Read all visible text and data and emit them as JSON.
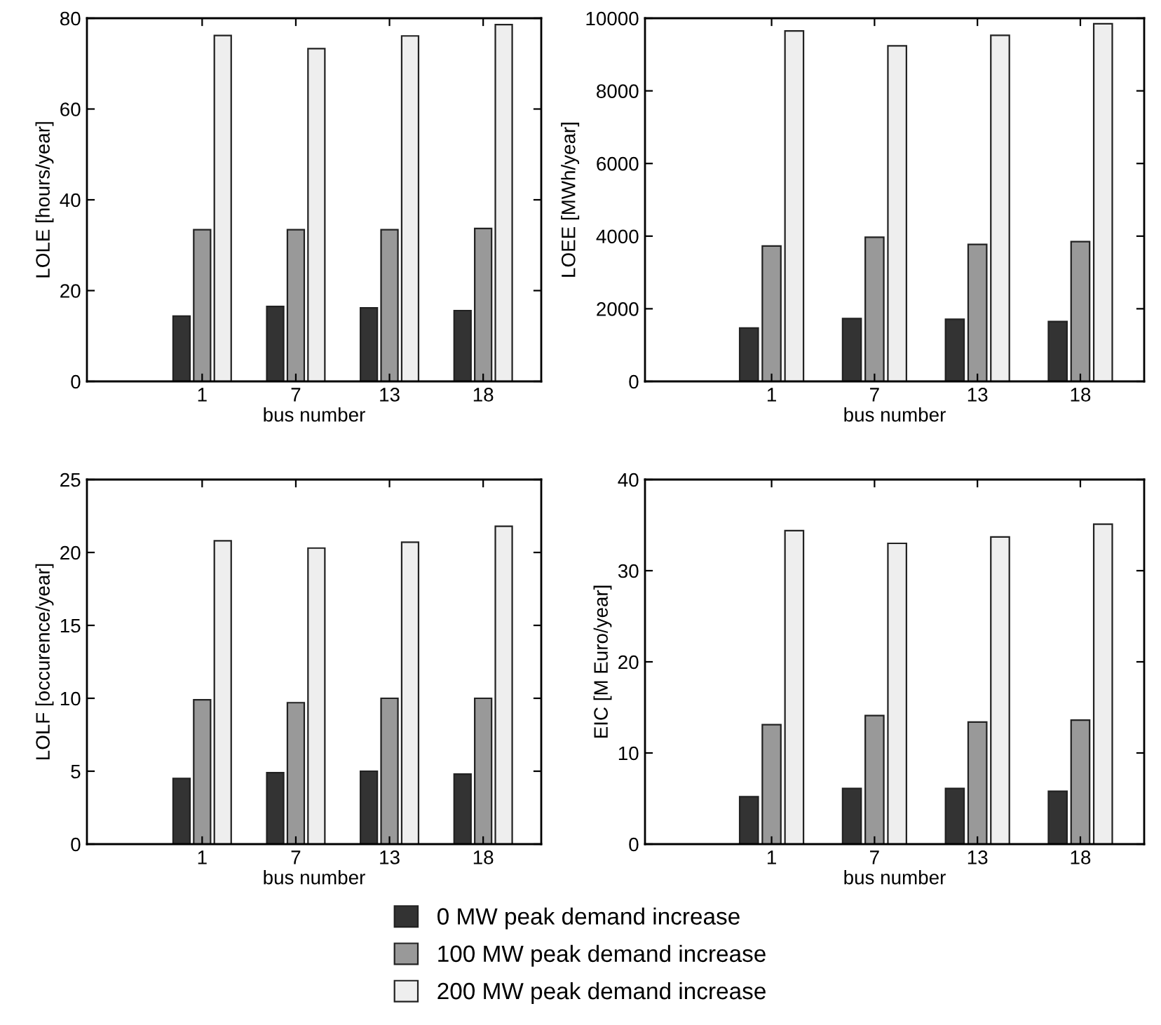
{
  "chart_data": [
    {
      "type": "bar",
      "xlabel": "bus number",
      "ylabel": "LOLE [hours/year]",
      "categories": [
        "1",
        "7",
        "13",
        "18"
      ],
      "ylim": [
        0,
        80
      ],
      "yticks": [
        0,
        20,
        40,
        60,
        80
      ],
      "grid": false,
      "legend": "bottom",
      "series": [
        {
          "name": "0 MW peak demand increase",
          "color": "#333333",
          "values": [
            14.4,
            16.5,
            16.2,
            15.6
          ]
        },
        {
          "name": "100 MW peak demand increase",
          "color": "#999999",
          "values": [
            33.4,
            33.4,
            33.4,
            33.7
          ]
        },
        {
          "name": "200 MW peak demand increase",
          "color": "#eeeeee",
          "values": [
            76.2,
            73.3,
            76.1,
            78.6
          ]
        }
      ]
    },
    {
      "type": "bar",
      "xlabel": "bus number",
      "ylabel": "LOEE [MWh/year]",
      "categories": [
        "1",
        "7",
        "13",
        "18"
      ],
      "ylim": [
        0,
        10000
      ],
      "yticks": [
        0,
        2000,
        4000,
        6000,
        8000,
        10000
      ],
      "grid": false,
      "series": [
        {
          "color": "#333333",
          "values": [
            1470,
            1730,
            1710,
            1650
          ]
        },
        {
          "color": "#999999",
          "values": [
            3730,
            3970,
            3770,
            3850
          ]
        },
        {
          "color": "#eeeeee",
          "values": [
            9650,
            9240,
            9530,
            9850
          ]
        }
      ]
    },
    {
      "type": "bar",
      "xlabel": "bus number",
      "ylabel": "LOLF [occurence/year]",
      "categories": [
        "1",
        "7",
        "13",
        "18"
      ],
      "ylim": [
        0,
        25
      ],
      "yticks": [
        0,
        5,
        10,
        15,
        20,
        25
      ],
      "grid": false,
      "series": [
        {
          "color": "#333333",
          "values": [
            4.5,
            4.9,
            5.0,
            4.8
          ]
        },
        {
          "color": "#999999",
          "values": [
            9.9,
            9.7,
            10.0,
            10.0
          ]
        },
        {
          "color": "#eeeeee",
          "values": [
            20.8,
            20.3,
            20.7,
            21.8
          ]
        }
      ]
    },
    {
      "type": "bar",
      "xlabel": "bus number",
      "ylabel": "EIC [M Euro/year]",
      "categories": [
        "1",
        "7",
        "13",
        "18"
      ],
      "ylim": [
        0,
        40
      ],
      "yticks": [
        0,
        10,
        20,
        30,
        40
      ],
      "grid": false,
      "series": [
        {
          "color": "#333333",
          "values": [
            5.2,
            6.1,
            6.1,
            5.8
          ]
        },
        {
          "color": "#999999",
          "values": [
            13.1,
            14.1,
            13.4,
            13.6
          ]
        },
        {
          "color": "#eeeeee",
          "values": [
            34.4,
            33.0,
            33.7,
            35.1
          ]
        }
      ]
    }
  ]
}
